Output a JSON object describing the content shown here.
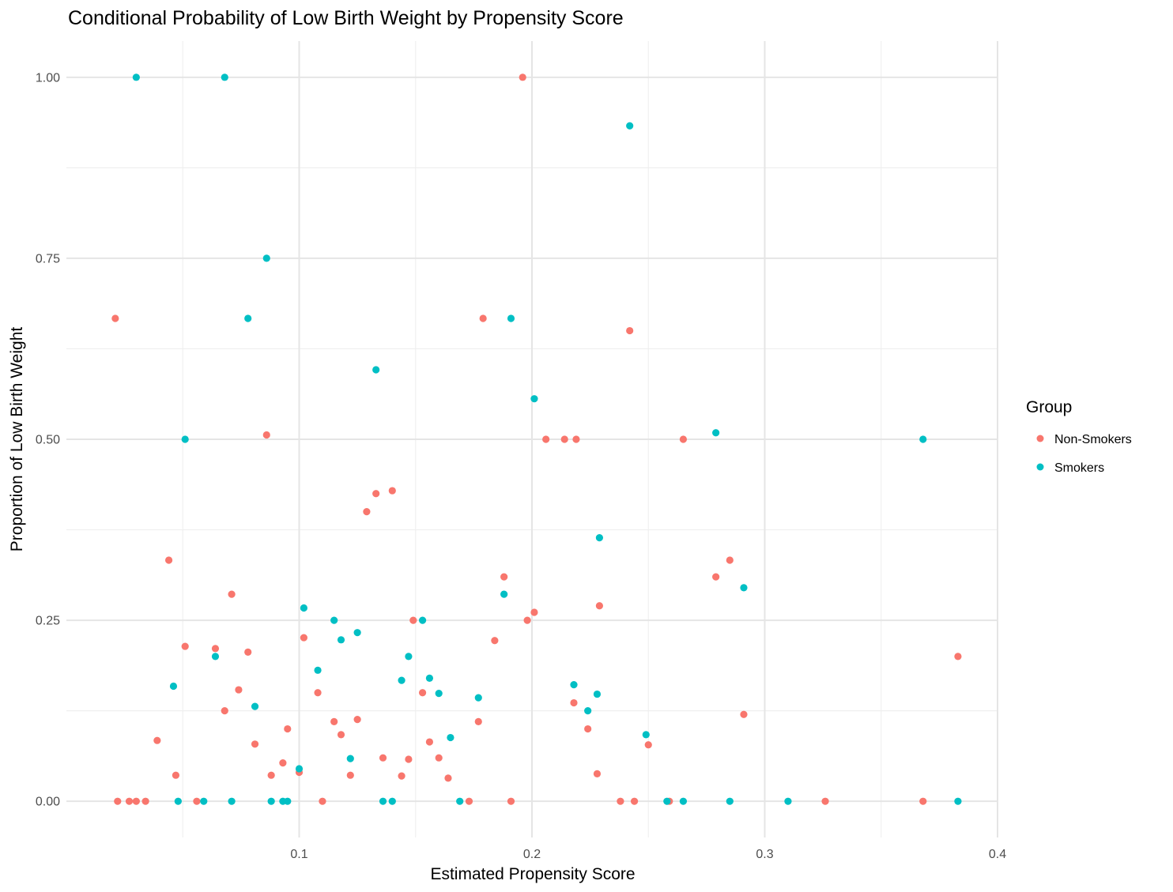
{
  "chart_data": {
    "type": "scatter",
    "title": "Conditional Probability of Low Birth Weight by Propensity Score",
    "xlabel": "Estimated Propensity Score",
    "ylabel": "Proportion of Low Birth Weight",
    "xlim": [
      0.0,
      0.4
    ],
    "ylim": [
      -0.05,
      1.05
    ],
    "x_ticks": [
      0.1,
      0.2,
      0.3,
      0.4
    ],
    "x_tick_labels": [
      "0.1",
      "0.2",
      "0.3",
      "0.4"
    ],
    "y_ticks": [
      0.0,
      0.25,
      0.5,
      0.75,
      1.0
    ],
    "y_tick_labels": [
      "0.00",
      "0.25",
      "0.50",
      "0.75",
      "1.00"
    ],
    "grid": true,
    "legend": {
      "title": "Group",
      "position": "right"
    },
    "series": [
      {
        "name": "Non-Smokers",
        "color": "#F8766D",
        "points": [
          [
            0.021,
            0.667
          ],
          [
            0.022,
            0.0
          ],
          [
            0.027,
            0.0
          ],
          [
            0.03,
            0.0
          ],
          [
            0.034,
            0.0
          ],
          [
            0.039,
            0.084
          ],
          [
            0.044,
            0.333
          ],
          [
            0.047,
            0.036
          ],
          [
            0.051,
            0.214
          ],
          [
            0.056,
            0.0
          ],
          [
            0.064,
            0.211
          ],
          [
            0.068,
            0.125
          ],
          [
            0.071,
            0.286
          ],
          [
            0.074,
            0.154
          ],
          [
            0.078,
            0.206
          ],
          [
            0.081,
            0.079
          ],
          [
            0.086,
            0.506
          ],
          [
            0.088,
            0.036
          ],
          [
            0.093,
            0.053
          ],
          [
            0.095,
            0.1
          ],
          [
            0.1,
            0.04
          ],
          [
            0.102,
            0.226
          ],
          [
            0.108,
            0.15
          ],
          [
            0.11,
            0.0
          ],
          [
            0.115,
            0.11
          ],
          [
            0.118,
            0.092
          ],
          [
            0.122,
            0.036
          ],
          [
            0.125,
            0.113
          ],
          [
            0.129,
            0.4
          ],
          [
            0.133,
            0.425
          ],
          [
            0.136,
            0.06
          ],
          [
            0.14,
            0.429
          ],
          [
            0.144,
            0.035
          ],
          [
            0.147,
            0.058
          ],
          [
            0.149,
            0.25
          ],
          [
            0.153,
            0.15
          ],
          [
            0.156,
            0.082
          ],
          [
            0.16,
            0.06
          ],
          [
            0.164,
            0.032
          ],
          [
            0.173,
            0.0
          ],
          [
            0.177,
            0.11
          ],
          [
            0.179,
            0.667
          ],
          [
            0.184,
            0.222
          ],
          [
            0.188,
            0.31
          ],
          [
            0.191,
            0.0
          ],
          [
            0.196,
            1.0
          ],
          [
            0.198,
            0.25
          ],
          [
            0.201,
            0.261
          ],
          [
            0.206,
            0.5
          ],
          [
            0.214,
            0.5
          ],
          [
            0.218,
            0.136
          ],
          [
            0.219,
            0.5
          ],
          [
            0.224,
            0.1
          ],
          [
            0.228,
            0.038
          ],
          [
            0.229,
            0.27
          ],
          [
            0.238,
            0.0
          ],
          [
            0.242,
            0.65
          ],
          [
            0.244,
            0.0
          ],
          [
            0.25,
            0.078
          ],
          [
            0.259,
            0.0
          ],
          [
            0.265,
            0.5
          ],
          [
            0.279,
            0.31
          ],
          [
            0.285,
            0.333
          ],
          [
            0.291,
            0.12
          ],
          [
            0.326,
            0.0
          ],
          [
            0.368,
            0.0
          ],
          [
            0.383,
            0.2
          ]
        ]
      },
      {
        "name": "Smokers",
        "color": "#00BFC4",
        "points": [
          [
            0.03,
            1.0
          ],
          [
            0.046,
            0.159
          ],
          [
            0.048,
            0.0
          ],
          [
            0.051,
            0.5
          ],
          [
            0.059,
            0.0
          ],
          [
            0.064,
            0.2
          ],
          [
            0.068,
            1.0
          ],
          [
            0.071,
            0.0
          ],
          [
            0.078,
            0.667
          ],
          [
            0.081,
            0.131
          ],
          [
            0.086,
            0.75
          ],
          [
            0.088,
            0.0
          ],
          [
            0.093,
            0.0
          ],
          [
            0.095,
            0.0
          ],
          [
            0.1,
            0.045
          ],
          [
            0.102,
            0.267
          ],
          [
            0.108,
            0.181
          ],
          [
            0.115,
            0.25
          ],
          [
            0.118,
            0.223
          ],
          [
            0.122,
            0.059
          ],
          [
            0.125,
            0.233
          ],
          [
            0.133,
            0.596
          ],
          [
            0.136,
            0.0
          ],
          [
            0.14,
            0.0
          ],
          [
            0.144,
            0.167
          ],
          [
            0.147,
            0.2
          ],
          [
            0.153,
            0.25
          ],
          [
            0.156,
            0.17
          ],
          [
            0.16,
            0.149
          ],
          [
            0.165,
            0.088
          ],
          [
            0.169,
            0.0
          ],
          [
            0.177,
            0.143
          ],
          [
            0.188,
            0.286
          ],
          [
            0.191,
            0.667
          ],
          [
            0.201,
            0.556
          ],
          [
            0.218,
            0.161
          ],
          [
            0.224,
            0.125
          ],
          [
            0.228,
            0.148
          ],
          [
            0.229,
            0.364
          ],
          [
            0.242,
            0.933
          ],
          [
            0.249,
            0.092
          ],
          [
            0.258,
            0.0
          ],
          [
            0.265,
            0.0
          ],
          [
            0.279,
            0.509
          ],
          [
            0.285,
            0.0
          ],
          [
            0.291,
            0.295
          ],
          [
            0.31,
            0.0
          ],
          [
            0.368,
            0.5
          ],
          [
            0.383,
            0.0
          ]
        ]
      }
    ]
  }
}
